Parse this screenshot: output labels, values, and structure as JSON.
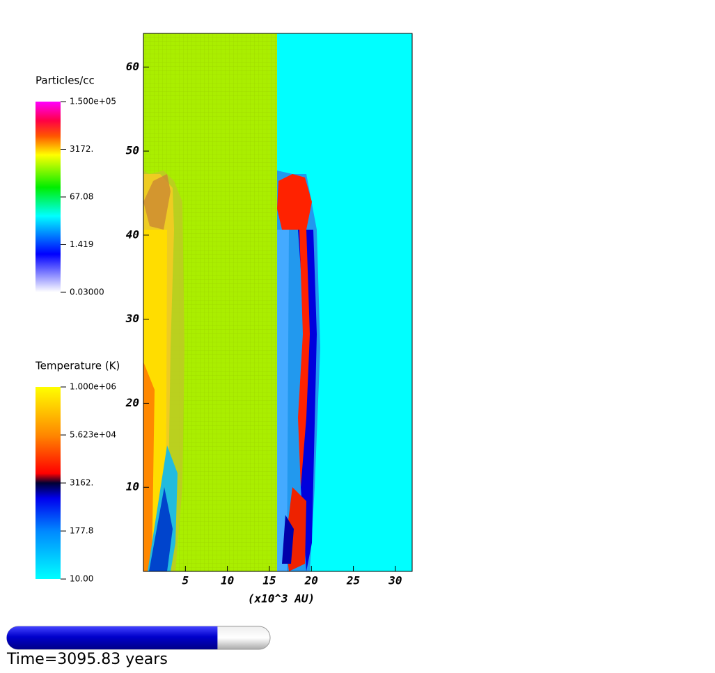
{
  "chart_data": {
    "type": "pseudocolor",
    "xlabel": "(x10^3 AU)",
    "xlim": [
      0,
      32
    ],
    "ylim": [
      0,
      64
    ],
    "xticks": [
      5,
      10,
      15,
      20,
      25,
      30
    ],
    "yticks": [
      10,
      20,
      30,
      40,
      50,
      60
    ],
    "colorbars": [
      {
        "title": "Particles/cc",
        "log_scale": true,
        "clim": [
          0.03,
          150000
        ],
        "ticks": [
          {
            "value": 150000,
            "label": "1.500e+05"
          },
          {
            "value": 3172,
            "label": "3172."
          },
          {
            "value": 67.08,
            "label": "67.08"
          },
          {
            "value": 1.419,
            "label": "1.419"
          },
          {
            "value": 0.03,
            "label": "0.03000"
          }
        ]
      },
      {
        "title": "Temperature (K)",
        "log_scale": true,
        "clim": [
          10,
          1000000
        ],
        "ticks": [
          {
            "value": 1000000,
            "label": "1.000e+06"
          },
          {
            "value": 56230,
            "label": "5.623e+04"
          },
          {
            "value": 3162,
            "label": "3162."
          },
          {
            "value": 177.8,
            "label": "177.8"
          },
          {
            "value": 10,
            "label": "10.00"
          }
        ]
      }
    ],
    "time_label": "Time=3095.83 years",
    "progress": 0.8
  }
}
